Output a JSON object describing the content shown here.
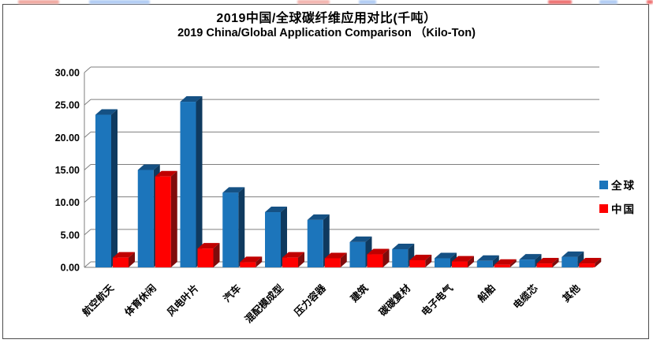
{
  "page": {
    "title_zh": "2019中国/全球碳纤维应用对比(千吨）",
    "title_en": "2019 China/Global Application Comparison （Kilo-Ton)"
  },
  "legend": {
    "items": [
      {
        "label": "全球",
        "color": "#1C75BB"
      },
      {
        "label": "中国",
        "color": "#FE0000"
      }
    ],
    "position": "right"
  },
  "chart_data": {
    "type": "bar",
    "style": "3d-clustered-column",
    "title": "2019中国/全球碳纤维应用对比(千吨）",
    "subtitle": "2019 China/Global Application Comparison （Kilo-Ton)",
    "categories": [
      "航空航天",
      "体育休闲",
      "风电叶片",
      "汽车",
      "混配模成型",
      "压力容器",
      "建筑",
      "碳碳复材",
      "电子电气",
      "船舶",
      "电缆芯",
      "其他"
    ],
    "series": [
      {
        "name": "全球",
        "color": "#1C75BB",
        "side_color": "#0F3A5F",
        "top_color": "#155184",
        "values": [
          23.5,
          15.0,
          25.5,
          11.5,
          8.5,
          7.3,
          3.9,
          2.8,
          1.4,
          1.0,
          1.2,
          1.6
        ]
      },
      {
        "name": "中国",
        "color": "#FE0000",
        "side_color": "#7F0C0C",
        "top_color": "#C00000",
        "values": [
          1.5,
          14.0,
          2.9,
          0.8,
          1.5,
          1.4,
          2.0,
          1.1,
          0.9,
          0.4,
          0.6,
          0.6
        ]
      }
    ],
    "xlabel": "",
    "ylabel": "",
    "ylim": [
      0,
      30
    ],
    "ytick_step": 5,
    "ytick_labels": [
      "0.00",
      "5.00",
      "10.00",
      "15.00",
      "20.00",
      "25.00",
      "30.00"
    ],
    "grid": true,
    "gridline_color": "#7F7F7F",
    "legend_position": "right"
  },
  "colors": {
    "frame_border": "#4d4d4d",
    "background": "#ffffff",
    "axis_text": "#000000"
  },
  "artifacts": {
    "blocks": [
      {
        "x": 23,
        "w": 52,
        "color": "#f0a8a0"
      },
      {
        "x": 113,
        "w": 77,
        "color": "#b0ccf4"
      },
      {
        "x": 377,
        "w": 41,
        "color": "#f3b3ae"
      },
      {
        "x": 455,
        "w": 22,
        "color": "#b0ccf4"
      },
      {
        "x": 695,
        "w": 30,
        "color": "#ee7070"
      },
      {
        "x": 760,
        "w": 23,
        "color": "#b0ccf4"
      },
      {
        "x": 820,
        "w": 8,
        "color": "#ee7070"
      }
    ]
  }
}
